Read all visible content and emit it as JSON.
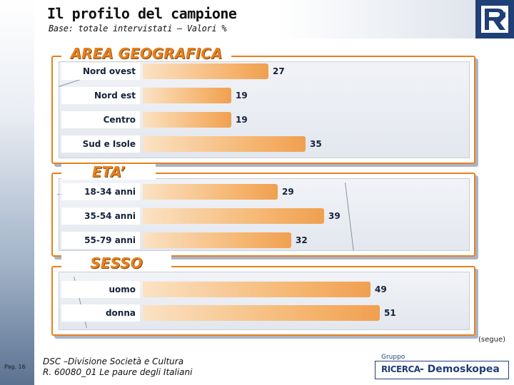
{
  "header": {
    "title": "Il profilo del campione",
    "subtitle": "Base: totale intervistati – Valori %"
  },
  "chart_data": [
    {
      "type": "bar",
      "orientation": "horizontal",
      "title": "AREA GEOGRAFICA",
      "categories": [
        "Nord ovest",
        "Nord est",
        "Centro",
        "Sud e Isole"
      ],
      "values": [
        27,
        19,
        19,
        35
      ],
      "value_labels": [
        "27",
        "19",
        "19",
        "35"
      ],
      "xlim": [
        0,
        60
      ],
      "grid": false,
      "legend": "none"
    },
    {
      "type": "bar",
      "orientation": "horizontal",
      "title": "ETA’",
      "categories": [
        "18-34 anni",
        "35-54 anni",
        "55-79 anni"
      ],
      "values": [
        29,
        39,
        32
      ],
      "value_labels": [
        "29",
        "39",
        "32"
      ],
      "xlim": [
        0,
        60
      ],
      "grid": false,
      "legend": "none"
    },
    {
      "type": "bar",
      "orientation": "horizontal",
      "title": "SESSO",
      "categories": [
        "uomo",
        "donna"
      ],
      "values": [
        49,
        51
      ],
      "value_labels": [
        "49",
        "51"
      ],
      "xlim": [
        0,
        60
      ],
      "grid": false,
      "legend": "none"
    }
  ],
  "segue": "(segue)",
  "footer": {
    "page": "Pag. 16",
    "line1": "DSC –Divisione Società e Cultura",
    "line2": "R. 60080_01 Le paure degli Italiani"
  },
  "brand": {
    "gruppo": "Gruppo",
    "ricerca": "RICERCA",
    "name": "- Demoskopea"
  },
  "colors": {
    "accent": "#e8801e",
    "navy": "#1f3f77",
    "bar_light": "#fbe2c4",
    "bar_dark": "#f0a050"
  },
  "icons": {
    "logo": "rk-logo-icon"
  }
}
